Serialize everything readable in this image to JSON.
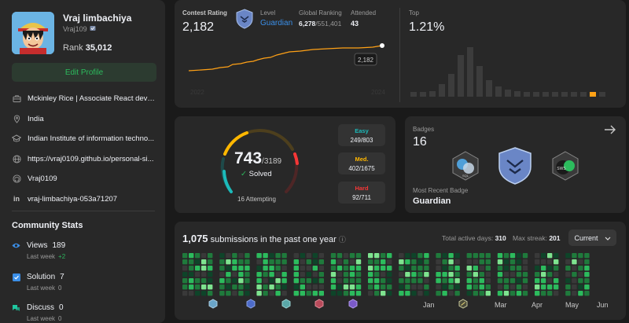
{
  "profile": {
    "name": "Vraj limbachiya",
    "username": "Vraj109",
    "rank_label": "Rank",
    "rank_value": "35,012",
    "edit_label": "Edit Profile"
  },
  "info": [
    {
      "icon": "briefcase-icon",
      "text": "Mckinley Rice | Associate React devel..."
    },
    {
      "icon": "location-icon",
      "text": "India"
    },
    {
      "icon": "graduation-cap-icon",
      "text": "Indian Institute of information techno..."
    },
    {
      "icon": "globe-icon",
      "text": "https://vraj0109.github.io/personal-si..."
    },
    {
      "icon": "github-icon",
      "text": "Vraj0109"
    },
    {
      "icon": "linkedin-icon",
      "text": "vraj-limbachiya-053a71207"
    }
  ],
  "community": {
    "title": "Community Stats",
    "last_week_label": "Last week",
    "items": [
      {
        "icon": "eye-icon",
        "label": "Views",
        "value": "189",
        "delta": "+2",
        "color": "#3b8fe8"
      },
      {
        "icon": "check-square-icon",
        "label": "Solution",
        "value": "7",
        "delta": "0",
        "color": "#3b8fe8"
      },
      {
        "icon": "discuss-icon",
        "label": "Discuss",
        "value": "0",
        "delta": "0",
        "color": "#1fc7a0"
      }
    ]
  },
  "contest": {
    "rating_label": "Contest Rating",
    "rating": "2,182",
    "level_label": "Level",
    "level": "Guardian",
    "global_label": "Global Ranking",
    "global_rank": "6,278",
    "global_total": "/551,401",
    "attended_label": "Attended",
    "attended": "43",
    "top_label": "Top",
    "top": "1.21%",
    "tooltip": "2,182",
    "year_start": "2022",
    "year_end": "2024"
  },
  "solved": {
    "count": "743",
    "total": "/3189",
    "label": "Solved",
    "attempting": "16 Attempting",
    "easy_label": "Easy",
    "easy": "249/803",
    "easy_frac": 0.31,
    "med_label": "Med.",
    "med": "402/1675",
    "med_frac": 0.24,
    "hard_label": "Hard",
    "hard": "92/711",
    "hard_frac": 0.13
  },
  "badges": {
    "label": "Badges",
    "count": "16",
    "recent_label": "Most Recent Badge",
    "recent": "Guardian"
  },
  "submissions": {
    "count": "1,075",
    "text": "submissions in the past one year",
    "active_label": "Total active days:",
    "active": "310",
    "streak_label": "Max streak:",
    "streak": "201",
    "dropdown": "Current",
    "months": [
      "Jan",
      "Mar",
      "Apr",
      "May",
      "Jun"
    ]
  },
  "colors": {
    "green": "#2cbb5d",
    "easy": "#1cbaba",
    "med": "#ffb700",
    "hard": "#f63737",
    "accent": "#ffa116",
    "link": "#3b8fe8"
  }
}
